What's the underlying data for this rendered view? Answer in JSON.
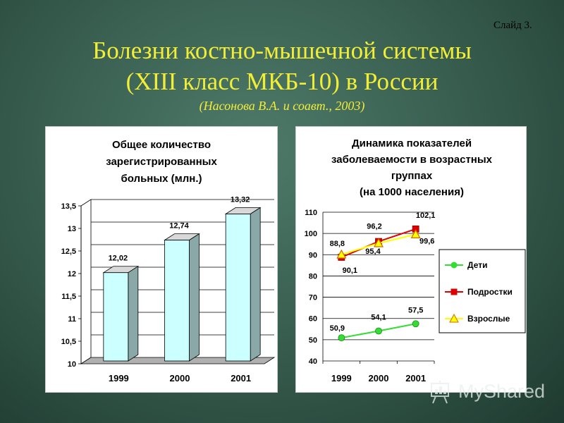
{
  "slide_label": "Слайд 3.",
  "title_line1": "Болезни костно-мышечной системы",
  "title_line2": "(XIII класс МКБ-10) в России",
  "subtitle": "(Насонова В.А. и соавт., 2003)",
  "watermark": "MyShared",
  "chart_data": [
    {
      "type": "bar",
      "title": [
        "Общее количество",
        "зарегистрированных",
        "больных (млн.)"
      ],
      "categories": [
        "1999",
        "2000",
        "2001"
      ],
      "values": [
        12.02,
        12.74,
        13.32
      ],
      "value_labels": [
        "12,02",
        "12,74",
        "13,32"
      ],
      "ylim": [
        10,
        13.5
      ],
      "yticks": [
        10,
        10.5,
        11,
        11.5,
        12,
        12.5,
        13,
        13.5
      ],
      "ytick_labels": [
        "10",
        "10,5",
        "11",
        "11,5",
        "12",
        "12,5",
        "13",
        "13,5"
      ],
      "grid": true,
      "bar_color": "#ccffff"
    },
    {
      "type": "line",
      "title": [
        "Динамика показателей",
        "заболеваемости в возрастных",
        "группах",
        "(на 1000 населения)"
      ],
      "categories": [
        "1999",
        "2000",
        "2001"
      ],
      "ylim": [
        40,
        110
      ],
      "yticks": [
        40,
        50,
        60,
        70,
        80,
        90,
        100,
        110
      ],
      "ytick_labels": [
        "40",
        "50",
        "60",
        "70",
        "80",
        "90",
        "100",
        "110"
      ],
      "grid": true,
      "legend_position": "right",
      "series": [
        {
          "name": "Дети",
          "values": [
            50.9,
            54.1,
            57.5
          ],
          "labels": [
            "50,9",
            "54,1",
            "57,5"
          ],
          "color": "#33dd33",
          "marker": "circle"
        },
        {
          "name": "Подростки",
          "values": [
            88.8,
            96.2,
            102.1
          ],
          "labels": [
            "88,8",
            "96,2",
            "102,1"
          ],
          "color": "#dd0000",
          "marker": "square"
        },
        {
          "name": "Взрослые",
          "values": [
            90.1,
            95.4,
            99.6
          ],
          "labels": [
            "90,1",
            "95,4",
            "99,6"
          ],
          "color": "#ffff00",
          "marker": "triangle"
        }
      ]
    }
  ]
}
